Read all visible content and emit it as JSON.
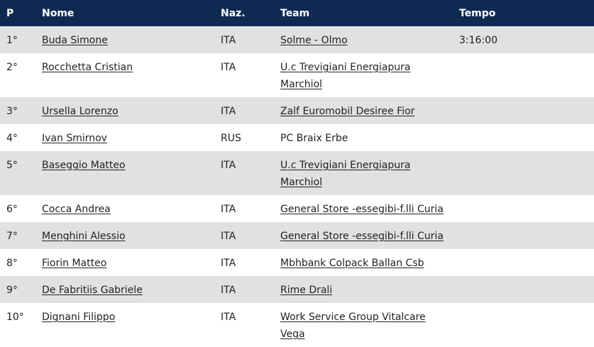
{
  "table": {
    "headers": {
      "pos": "P",
      "name": "Nome",
      "naz": "Naz.",
      "team": "Team",
      "time": "Tempo"
    },
    "rows": [
      {
        "pos": "1°",
        "name": "Buda Simone",
        "naz": "ITA",
        "team": "Solme - Olmo",
        "time": "3:16:00"
      },
      {
        "pos": "2°",
        "name": "Rocchetta Cristian",
        "naz": "ITA",
        "team": "U.c Trevigiani Energiapura Marchiol",
        "time": ""
      },
      {
        "pos": "3°",
        "name": "Ursella Lorenzo",
        "naz": "ITA",
        "team": "Zalf Euromobil Desiree Fior",
        "time": ""
      },
      {
        "pos": "4°",
        "name": "Ivan Smirnov",
        "naz": "RUS",
        "team": "PC Braix Erbe",
        "time": ""
      },
      {
        "pos": "5°",
        "name": "Baseggio Matteo",
        "naz": "ITA",
        "team": "U.c Trevigiani Energiapura Marchiol",
        "time": ""
      },
      {
        "pos": "6°",
        "name": "Cocca Andrea",
        "naz": "ITA",
        "team": "General Store -essegibi-f.lli Curia",
        "time": ""
      },
      {
        "pos": "7°",
        "name": "Menghini Alessio",
        "naz": "ITA",
        "team": "General Store -essegibi-f.lli Curia",
        "time": ""
      },
      {
        "pos": "8°",
        "name": "Fiorin Matteo",
        "naz": "ITA",
        "team": "Mbhbank Colpack Ballan Csb",
        "time": ""
      },
      {
        "pos": "9°",
        "name": "De Fabritiis Gabriele",
        "naz": "ITA",
        "team": "Rime Drali",
        "time": ""
      },
      {
        "pos": "10°",
        "name": "Dignani Filippo",
        "naz": "ITA",
        "team": "Work Service Group Vitalcare Vega",
        "time": ""
      }
    ]
  },
  "colors": {
    "header_bg": "#0f2a52",
    "header_text": "#ffffff",
    "row_alt_bg": "#e1e1e1",
    "row_bg": "#ffffff",
    "text": "#222222"
  }
}
